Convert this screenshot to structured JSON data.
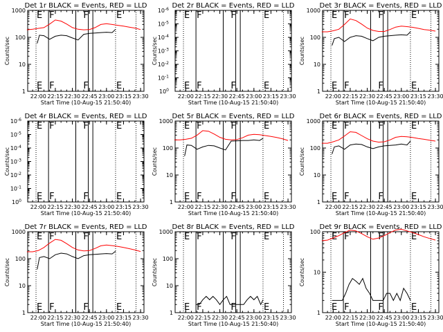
{
  "chart_data": [
    {
      "type": "line",
      "title": "Det 1r BLACK = Events, RED = LLD",
      "xlabel": "Start Time (10-Aug-15 21:50:40)",
      "ylabel": "Counts/sec",
      "x_ticks": [
        "22:00",
        "22:15",
        "22:30",
        "22:45",
        "23:00",
        "23:15",
        "23:30"
      ],
      "y_ticks": [
        "1",
        "10",
        "100",
        "1000"
      ],
      "ylim": [
        1,
        1000
      ],
      "y_scale": "log",
      "markers": [
        {
          "label": "E",
          "t": "21:58"
        },
        {
          "label": "F",
          "t": "22:09"
        },
        {
          "label": "F",
          "t": "22:39"
        },
        {
          "label": "E",
          "t": "23:08"
        }
      ],
      "series": [
        {
          "color": "#000000",
          "x": [
            "21:59",
            "22:01",
            "22:05",
            "22:10",
            "22:15",
            "22:20",
            "22:25",
            "22:30",
            "22:35",
            "22:40",
            "22:45",
            "22:50",
            "22:55",
            "23:00",
            "23:05",
            "23:08"
          ],
          "values": [
            60,
            120,
            115,
            85,
            110,
            120,
            115,
            95,
            80,
            130,
            140,
            145,
            150,
            155,
            150,
            200
          ]
        },
        {
          "color": "#ff0000",
          "x": [
            "21:50",
            "21:55",
            "22:00",
            "22:05",
            "22:10",
            "22:15",
            "22:20",
            "22:25",
            "22:30",
            "22:35",
            "22:40",
            "22:45",
            "22:50",
            "22:55",
            "23:00",
            "23:05",
            "23:10",
            "23:15",
            "23:20",
            "23:25",
            "23:30"
          ],
          "values": [
            190,
            200,
            215,
            230,
            310,
            440,
            400,
            310,
            230,
            200,
            190,
            195,
            230,
            300,
            320,
            300,
            280,
            260,
            240,
            220,
            195
          ]
        }
      ]
    },
    {
      "type": "line",
      "title": "Det 2r BLACK = Events, RED = LLD",
      "xlabel": "Start Time (10-Aug-15 21:50:40)",
      "ylabel": "Counts/sec",
      "x_ticks": [
        "22:00",
        "22:15",
        "22:30",
        "22:45",
        "23:00",
        "23:15",
        "23:30"
      ],
      "y_ticks": [
        "10^0",
        "10^-1",
        "10^-2",
        "10^-3",
        "10^-4",
        "10^-5",
        "10^-6"
      ],
      "markers": [
        {
          "label": "E",
          "t": "21:58"
        },
        {
          "label": "F",
          "t": "22:09"
        },
        {
          "label": "F",
          "t": "22:39"
        },
        {
          "label": "E",
          "t": "23:08"
        }
      ],
      "series": []
    },
    {
      "type": "line",
      "title": "Det 3r BLACK = Events, RED = LLD",
      "xlabel": "Start Time (10-Aug-15 21:50:40)",
      "ylabel": "Counts/sec",
      "x_ticks": [
        "22:00",
        "22:15",
        "22:30",
        "22:45",
        "23:00",
        "23:15",
        "23:30"
      ],
      "y_ticks": [
        "1",
        "10",
        "100",
        "1000"
      ],
      "ylim": [
        1,
        1000
      ],
      "y_scale": "log",
      "markers": [
        {
          "label": "E",
          "t": "21:58"
        },
        {
          "label": "F",
          "t": "22:09"
        },
        {
          "label": "F",
          "t": "22:39"
        },
        {
          "label": "E",
          "t": "23:08"
        }
      ],
      "series": [
        {
          "color": "#000000",
          "x": [
            "21:59",
            "22:01",
            "22:05",
            "22:10",
            "22:15",
            "22:20",
            "22:25",
            "22:30",
            "22:35",
            "22:40",
            "22:45",
            "22:50",
            "22:55",
            "23:00",
            "23:05",
            "23:08"
          ],
          "values": [
            50,
            90,
            100,
            70,
            100,
            115,
            110,
            90,
            75,
            100,
            110,
            115,
            120,
            125,
            120,
            160
          ]
        },
        {
          "color": "#ff0000",
          "x": [
            "21:50",
            "21:55",
            "22:00",
            "22:05",
            "22:10",
            "22:15",
            "22:20",
            "22:25",
            "22:30",
            "22:35",
            "22:40",
            "22:45",
            "22:50",
            "22:55",
            "23:00",
            "23:05",
            "23:10",
            "23:15",
            "23:20",
            "23:25",
            "23:30"
          ],
          "values": [
            160,
            160,
            175,
            200,
            300,
            480,
            420,
            310,
            220,
            180,
            165,
            165,
            195,
            240,
            260,
            250,
            235,
            215,
            195,
            185,
            170
          ]
        }
      ]
    },
    {
      "type": "line",
      "title": "Det 4r BLACK = Events, RED = LLD",
      "xlabel": "Start Time (10-Aug-15 21:50:40)",
      "ylabel": "Counts/sec",
      "x_ticks": [
        "22:00",
        "22:15",
        "22:30",
        "22:45",
        "23:00",
        "23:15",
        "23:30"
      ],
      "y_ticks": [
        "10^0",
        "10^-1",
        "10^-2",
        "10^-3",
        "10^-4",
        "10^-5",
        "10^-6"
      ],
      "markers": [
        {
          "label": "E",
          "t": "21:58"
        },
        {
          "label": "F",
          "t": "22:09"
        },
        {
          "label": "F",
          "t": "22:39"
        },
        {
          "label": "E",
          "t": "23:08"
        }
      ],
      "series": []
    },
    {
      "type": "line",
      "title": "Det 5r BLACK = Events, RED = LLD",
      "xlabel": "Start Time (10-Aug-15 21:50:40)",
      "ylabel": "Counts/sec",
      "x_ticks": [
        "22:00",
        "22:15",
        "22:30",
        "22:45",
        "23:00",
        "23:15",
        "23:30"
      ],
      "y_ticks": [
        "1",
        "10",
        "100",
        "1000"
      ],
      "ylim": [
        1,
        1000
      ],
      "y_scale": "log",
      "markers": [
        {
          "label": "E",
          "t": "21:58"
        },
        {
          "label": "F",
          "t": "22:09"
        },
        {
          "label": "F",
          "t": "22:39"
        },
        {
          "label": "E",
          "t": "23:08"
        }
      ],
      "series": [
        {
          "color": "#000000",
          "x": [
            "21:59",
            "22:01",
            "22:05",
            "22:10",
            "22:15",
            "22:20",
            "22:25",
            "22:30",
            "22:35",
            "22:40",
            "22:45",
            "22:50",
            "22:55",
            "23:00",
            "23:05",
            "23:08"
          ],
          "values": [
            50,
            130,
            125,
            90,
            110,
            125,
            120,
            100,
            85,
            180,
            185,
            190,
            190,
            200,
            190,
            230
          ]
        },
        {
          "color": "#ff0000",
          "x": [
            "21:50",
            "21:55",
            "22:00",
            "22:05",
            "22:10",
            "22:15",
            "22:20",
            "22:25",
            "22:30",
            "22:35",
            "22:40",
            "22:45",
            "22:50",
            "22:55",
            "23:00",
            "23:05",
            "23:10",
            "23:15",
            "23:20",
            "23:25",
            "23:30"
          ],
          "values": [
            200,
            200,
            210,
            230,
            300,
            440,
            420,
            330,
            250,
            210,
            200,
            205,
            240,
            300,
            320,
            310,
            290,
            270,
            245,
            220,
            190
          ]
        }
      ]
    },
    {
      "type": "line",
      "title": "Det 6r BLACK = Events, RED = LLD",
      "xlabel": "Start Time (10-Aug-15 21:50:40)",
      "ylabel": "Counts/sec",
      "x_ticks": [
        "22:00",
        "22:15",
        "22:30",
        "22:45",
        "23:00",
        "23:15",
        "23:30"
      ],
      "y_ticks": [
        "1",
        "10",
        "100",
        "1000"
      ],
      "ylim": [
        1,
        1000
      ],
      "y_scale": "log",
      "markers": [
        {
          "label": "E",
          "t": "21:58"
        },
        {
          "label": "F",
          "t": "22:09"
        },
        {
          "label": "F",
          "t": "22:39"
        },
        {
          "label": "E",
          "t": "23:08"
        }
      ],
      "series": [
        {
          "color": "#000000",
          "x": [
            "21:59",
            "22:01",
            "22:05",
            "22:10",
            "22:15",
            "22:20",
            "22:25",
            "22:30",
            "22:35",
            "22:40",
            "22:45",
            "22:50",
            "22:55",
            "23:00",
            "23:05",
            "23:08"
          ],
          "values": [
            60,
            110,
            120,
            90,
            130,
            140,
            135,
            110,
            95,
            110,
            120,
            125,
            130,
            140,
            130,
            180
          ]
        },
        {
          "color": "#ff0000",
          "x": [
            "21:50",
            "21:55",
            "22:00",
            "22:05",
            "22:10",
            "22:15",
            "22:20",
            "22:25",
            "22:30",
            "22:35",
            "22:40",
            "22:45",
            "22:50",
            "22:55",
            "23:00",
            "23:05",
            "23:10",
            "23:15",
            "23:20",
            "23:25",
            "23:30"
          ],
          "values": [
            150,
            150,
            170,
            200,
            280,
            400,
            380,
            290,
            220,
            180,
            165,
            170,
            200,
            250,
            270,
            260,
            245,
            225,
            210,
            195,
            180
          ]
        }
      ]
    },
    {
      "type": "line",
      "title": "Det 7r BLACK = Events, RED = LLD",
      "xlabel": "Start Time (10-Aug-15 21:50:40)",
      "ylabel": "Counts/sec",
      "x_ticks": [
        "22:00",
        "22:15",
        "22:30",
        "22:45",
        "23:00",
        "23:15",
        "23:30"
      ],
      "y_ticks": [
        "1",
        "10",
        "100",
        "1000"
      ],
      "ylim": [
        1,
        1000
      ],
      "y_scale": "log",
      "markers": [
        {
          "label": "E",
          "t": "21:58"
        },
        {
          "label": "F",
          "t": "22:09"
        },
        {
          "label": "F",
          "t": "22:39"
        },
        {
          "label": "E",
          "t": "23:08"
        }
      ],
      "series": [
        {
          "color": "#000000",
          "x": [
            "21:59",
            "22:01",
            "22:05",
            "22:10",
            "22:15",
            "22:20",
            "22:25",
            "22:30",
            "22:35",
            "22:40",
            "22:45",
            "22:50",
            "22:55",
            "23:00",
            "23:05",
            "23:08"
          ],
          "values": [
            40,
            110,
            120,
            100,
            140,
            160,
            150,
            120,
            100,
            130,
            140,
            145,
            150,
            155,
            150,
            190
          ]
        },
        {
          "color": "#ff0000",
          "x": [
            "21:50",
            "21:55",
            "22:00",
            "22:05",
            "22:10",
            "22:15",
            "22:20",
            "22:25",
            "22:30",
            "22:35",
            "22:40",
            "22:45",
            "22:50",
            "22:55",
            "23:00",
            "23:05",
            "23:10",
            "23:15",
            "23:20",
            "23:25",
            "23:30"
          ],
          "values": [
            180,
            180,
            200,
            260,
            380,
            520,
            480,
            360,
            260,
            210,
            195,
            200,
            240,
            300,
            320,
            305,
            285,
            260,
            235,
            210,
            185
          ]
        }
      ]
    },
    {
      "type": "line",
      "title": "Det 8r BLACK = Events, RED = LLD",
      "xlabel": "Start Time (10-Aug-15 21:50:40)",
      "ylabel": "Counts/sec",
      "x_ticks": [
        "22:00",
        "22:15",
        "22:30",
        "22:45",
        "23:00",
        "23:15",
        "23:30"
      ],
      "y_ticks": [
        "1",
        "10",
        "100",
        "1000"
      ],
      "ylim": [
        1,
        1000
      ],
      "y_scale": "log",
      "markers": [
        {
          "label": "E",
          "t": "21:58"
        },
        {
          "label": "F",
          "t": "22:09"
        },
        {
          "label": "F",
          "t": "22:39"
        },
        {
          "label": "E",
          "t": "23:08"
        }
      ],
      "series": [
        {
          "color": "#000000",
          "x": [
            "22:09",
            "22:12",
            "22:15",
            "22:18",
            "22:21",
            "22:24",
            "22:27",
            "22:30",
            "22:33",
            "22:36",
            "22:39",
            "22:42",
            "22:45",
            "22:48",
            "22:51",
            "22:54",
            "22:57",
            "23:00",
            "23:03",
            "23:06",
            "23:08"
          ],
          "values": [
            2,
            2,
            3,
            4,
            3,
            4,
            3,
            2,
            3,
            4,
            2,
            2,
            2,
            2,
            2,
            3,
            4,
            3,
            4,
            2,
            3
          ]
        }
      ]
    },
    {
      "type": "line",
      "title": "Det 9r BLACK = Events, RED = LLD",
      "xlabel": "Start Time (10-Aug-15 21:50:40)",
      "ylabel": "Counts/sec",
      "x_ticks": [
        "22:00",
        "22:15",
        "22:30",
        "22:45",
        "23:00",
        "23:15",
        "23:30"
      ],
      "y_ticks": [
        "1",
        "10",
        "100"
      ],
      "ylim": [
        1,
        100
      ],
      "y_scale": "log",
      "markers": [
        {
          "label": "E",
          "t": "21:58"
        },
        {
          "label": "F",
          "t": "22:09"
        },
        {
          "label": "F",
          "t": "22:39"
        },
        {
          "label": "E",
          "t": "23:08"
        }
      ],
      "series": [
        {
          "color": "#000000",
          "x": [
            "21:59",
            "22:02",
            "22:05",
            "22:08",
            "22:11",
            "22:14",
            "22:17",
            "22:20",
            "22:23",
            "22:26",
            "22:29",
            "22:32",
            "22:35",
            "22:38",
            "22:41",
            "22:44",
            "22:47",
            "22:50",
            "22:53",
            "22:56",
            "22:59",
            "23:02",
            "23:05",
            "23:08"
          ],
          "values": [
            2,
            2,
            2,
            2,
            3,
            5,
            7,
            6,
            5,
            7,
            4,
            3,
            2,
            2,
            2,
            2,
            3,
            3,
            2,
            3,
            2,
            4,
            3,
            2
          ]
        },
        {
          "color": "#ff0000",
          "x": [
            "21:50",
            "21:55",
            "22:00",
            "22:05",
            "22:10",
            "22:15",
            "22:20",
            "22:25",
            "22:30",
            "22:35",
            "22:40",
            "22:45",
            "22:50",
            "22:55",
            "23:00",
            "23:05",
            "23:10",
            "23:15",
            "23:20",
            "23:25",
            "23:30"
          ],
          "values": [
            60,
            62,
            70,
            80,
            95,
            110,
            105,
            90,
            75,
            65,
            70,
            80,
            95,
            110,
            115,
            105,
            95,
            85,
            75,
            68,
            62
          ]
        }
      ]
    }
  ]
}
